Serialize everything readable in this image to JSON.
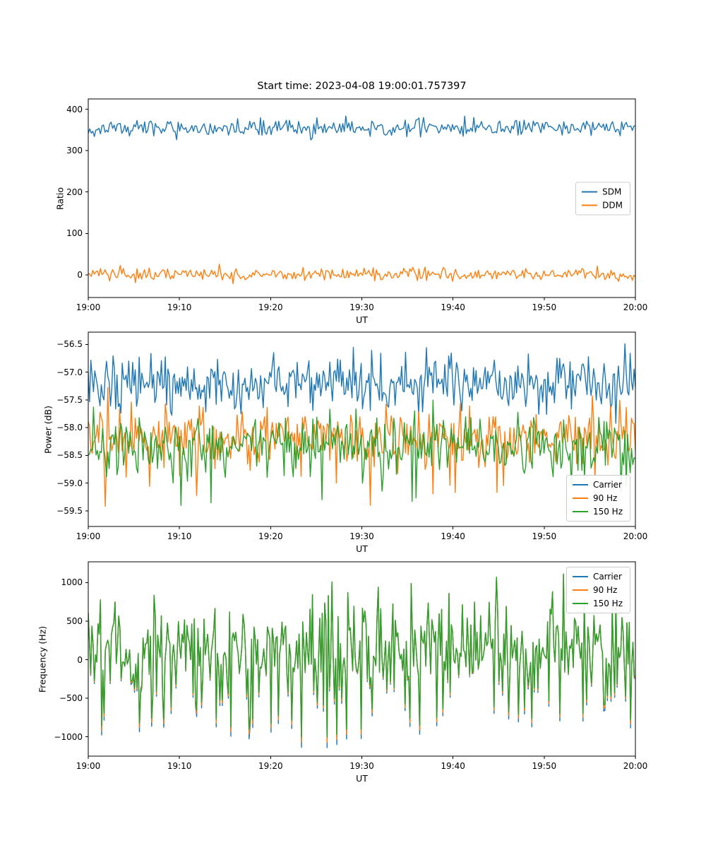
{
  "title": "Start time: 2023-04-08 19:00:01.757397",
  "background": "#ffffff",
  "axes_color": "#000000",
  "chart_data": [
    {
      "type": "line",
      "panel": "ratio",
      "xlabel": "UT",
      "ylabel": "Ratio",
      "xlim": [
        0,
        60
      ],
      "xticks": [
        {
          "v": 0,
          "label": "19:00"
        },
        {
          "v": 10,
          "label": "19:10"
        },
        {
          "v": 20,
          "label": "19:20"
        },
        {
          "v": 30,
          "label": "19:30"
        },
        {
          "v": 40,
          "label": "19:40"
        },
        {
          "v": 50,
          "label": "19:50"
        },
        {
          "v": 60,
          "label": "20:00"
        }
      ],
      "ylim": [
        -55,
        425
      ],
      "yticks": [
        {
          "v": 0,
          "label": "0"
        },
        {
          "v": 100,
          "label": "100"
        },
        {
          "v": 200,
          "label": "200"
        },
        {
          "v": 300,
          "label": "300"
        },
        {
          "v": 400,
          "label": "400"
        }
      ],
      "grid": false,
      "legend": {
        "position": "center-right",
        "entries": [
          {
            "label": "SDM",
            "color": "#1f77b4"
          },
          {
            "label": "DDM",
            "color": "#ff7f0e"
          }
        ]
      },
      "series": [
        {
          "name": "SDM",
          "color": "#1f77b4",
          "n": 360,
          "seed": 11,
          "mean": 355,
          "std": 11
        },
        {
          "name": "DDM",
          "color": "#ff7f0e",
          "n": 360,
          "seed": 23,
          "mean": 0,
          "std": 8
        }
      ]
    },
    {
      "type": "line",
      "panel": "power",
      "xlabel": "UT",
      "ylabel": "Power (dB)",
      "xlim": [
        0,
        60
      ],
      "xticks": [
        {
          "v": 0,
          "label": "19:00"
        },
        {
          "v": 10,
          "label": "19:10"
        },
        {
          "v": 20,
          "label": "19:20"
        },
        {
          "v": 30,
          "label": "19:30"
        },
        {
          "v": 40,
          "label": "19:40"
        },
        {
          "v": 50,
          "label": "19:50"
        },
        {
          "v": 60,
          "label": "20:00"
        }
      ],
      "ylim": [
        -59.78,
        -56.28
      ],
      "yticks": [
        {
          "v": -56.5,
          "label": "−56.5"
        },
        {
          "v": -57.0,
          "label": "−57.0"
        },
        {
          "v": -57.5,
          "label": "−57.5"
        },
        {
          "v": -58.0,
          "label": "−58.0"
        },
        {
          "v": -58.5,
          "label": "−58.5"
        },
        {
          "v": -59.0,
          "label": "−59.0"
        },
        {
          "v": -59.5,
          "label": "−59.5"
        }
      ],
      "grid": false,
      "legend": {
        "position": "lower-right",
        "entries": [
          {
            "label": "Carrier",
            "color": "#1f77b4"
          },
          {
            "label": "90 Hz",
            "color": "#ff7f0e"
          },
          {
            "label": "150 Hz",
            "color": "#2ca02c"
          }
        ]
      },
      "series": [
        {
          "name": "Carrier",
          "color": "#1f77b4",
          "n": 420,
          "seed": 31,
          "mean": -57.2,
          "std": 0.26
        },
        {
          "name": "90 Hz",
          "color": "#ff7f0e",
          "n": 420,
          "seed": 47,
          "mean": -58.2,
          "std": 0.27,
          "dip_prob": 0.04,
          "dip_min": 0.3,
          "dip_max": 1.0
        },
        {
          "name": "150 Hz",
          "color": "#2ca02c",
          "n": 420,
          "seed": 59,
          "mean": -58.3,
          "std": 0.26,
          "dip_prob": 0.04,
          "dip_min": 0.3,
          "dip_max": 1.05
        }
      ]
    },
    {
      "type": "line",
      "panel": "frequency",
      "xlabel": "UT",
      "ylabel": "Frequency (Hz)",
      "xlim": [
        0,
        60
      ],
      "xticks": [
        {
          "v": 0,
          "label": "19:00"
        },
        {
          "v": 10,
          "label": "19:10"
        },
        {
          "v": 20,
          "label": "19:20"
        },
        {
          "v": 30,
          "label": "19:30"
        },
        {
          "v": 40,
          "label": "19:40"
        },
        {
          "v": 50,
          "label": "19:50"
        },
        {
          "v": 60,
          "label": "20:00"
        }
      ],
      "ylim": [
        -1250,
        1270
      ],
      "yticks": [
        {
          "v": 1000,
          "label": "1000"
        },
        {
          "v": 500,
          "label": "500"
        },
        {
          "v": 0,
          "label": "0"
        },
        {
          "v": -500,
          "label": "−500"
        },
        {
          "v": -1000,
          "label": "−1000"
        }
      ],
      "grid": false,
      "legend": {
        "position": "upper-right",
        "entries": [
          {
            "label": "Carrier",
            "color": "#1f77b4"
          },
          {
            "label": "90 Hz",
            "color": "#ff7f0e"
          },
          {
            "label": "150 Hz",
            "color": "#2ca02c"
          }
        ]
      },
      "series": [
        {
          "name": "Carrier",
          "color": "#1f77b4",
          "n": 450,
          "seed": 777,
          "mean": 130,
          "std": 320,
          "spike_prob": 0.1,
          "spike_min": 350,
          "spike_max": 1150,
          "neg_scale": 1.0
        },
        {
          "name": "90 Hz",
          "color": "#ff7f0e",
          "n": 450,
          "seed": 777,
          "mean": 130,
          "std": 320,
          "spike_prob": 0.1,
          "spike_min": 350,
          "spike_max": 1150,
          "neg_scale": 0.94
        },
        {
          "name": "150 Hz",
          "color": "#2ca02c",
          "n": 450,
          "seed": 777,
          "mean": 130,
          "std": 320,
          "spike_prob": 0.1,
          "spike_min": 350,
          "spike_max": 1150,
          "neg_scale": 0.88
        }
      ]
    }
  ]
}
